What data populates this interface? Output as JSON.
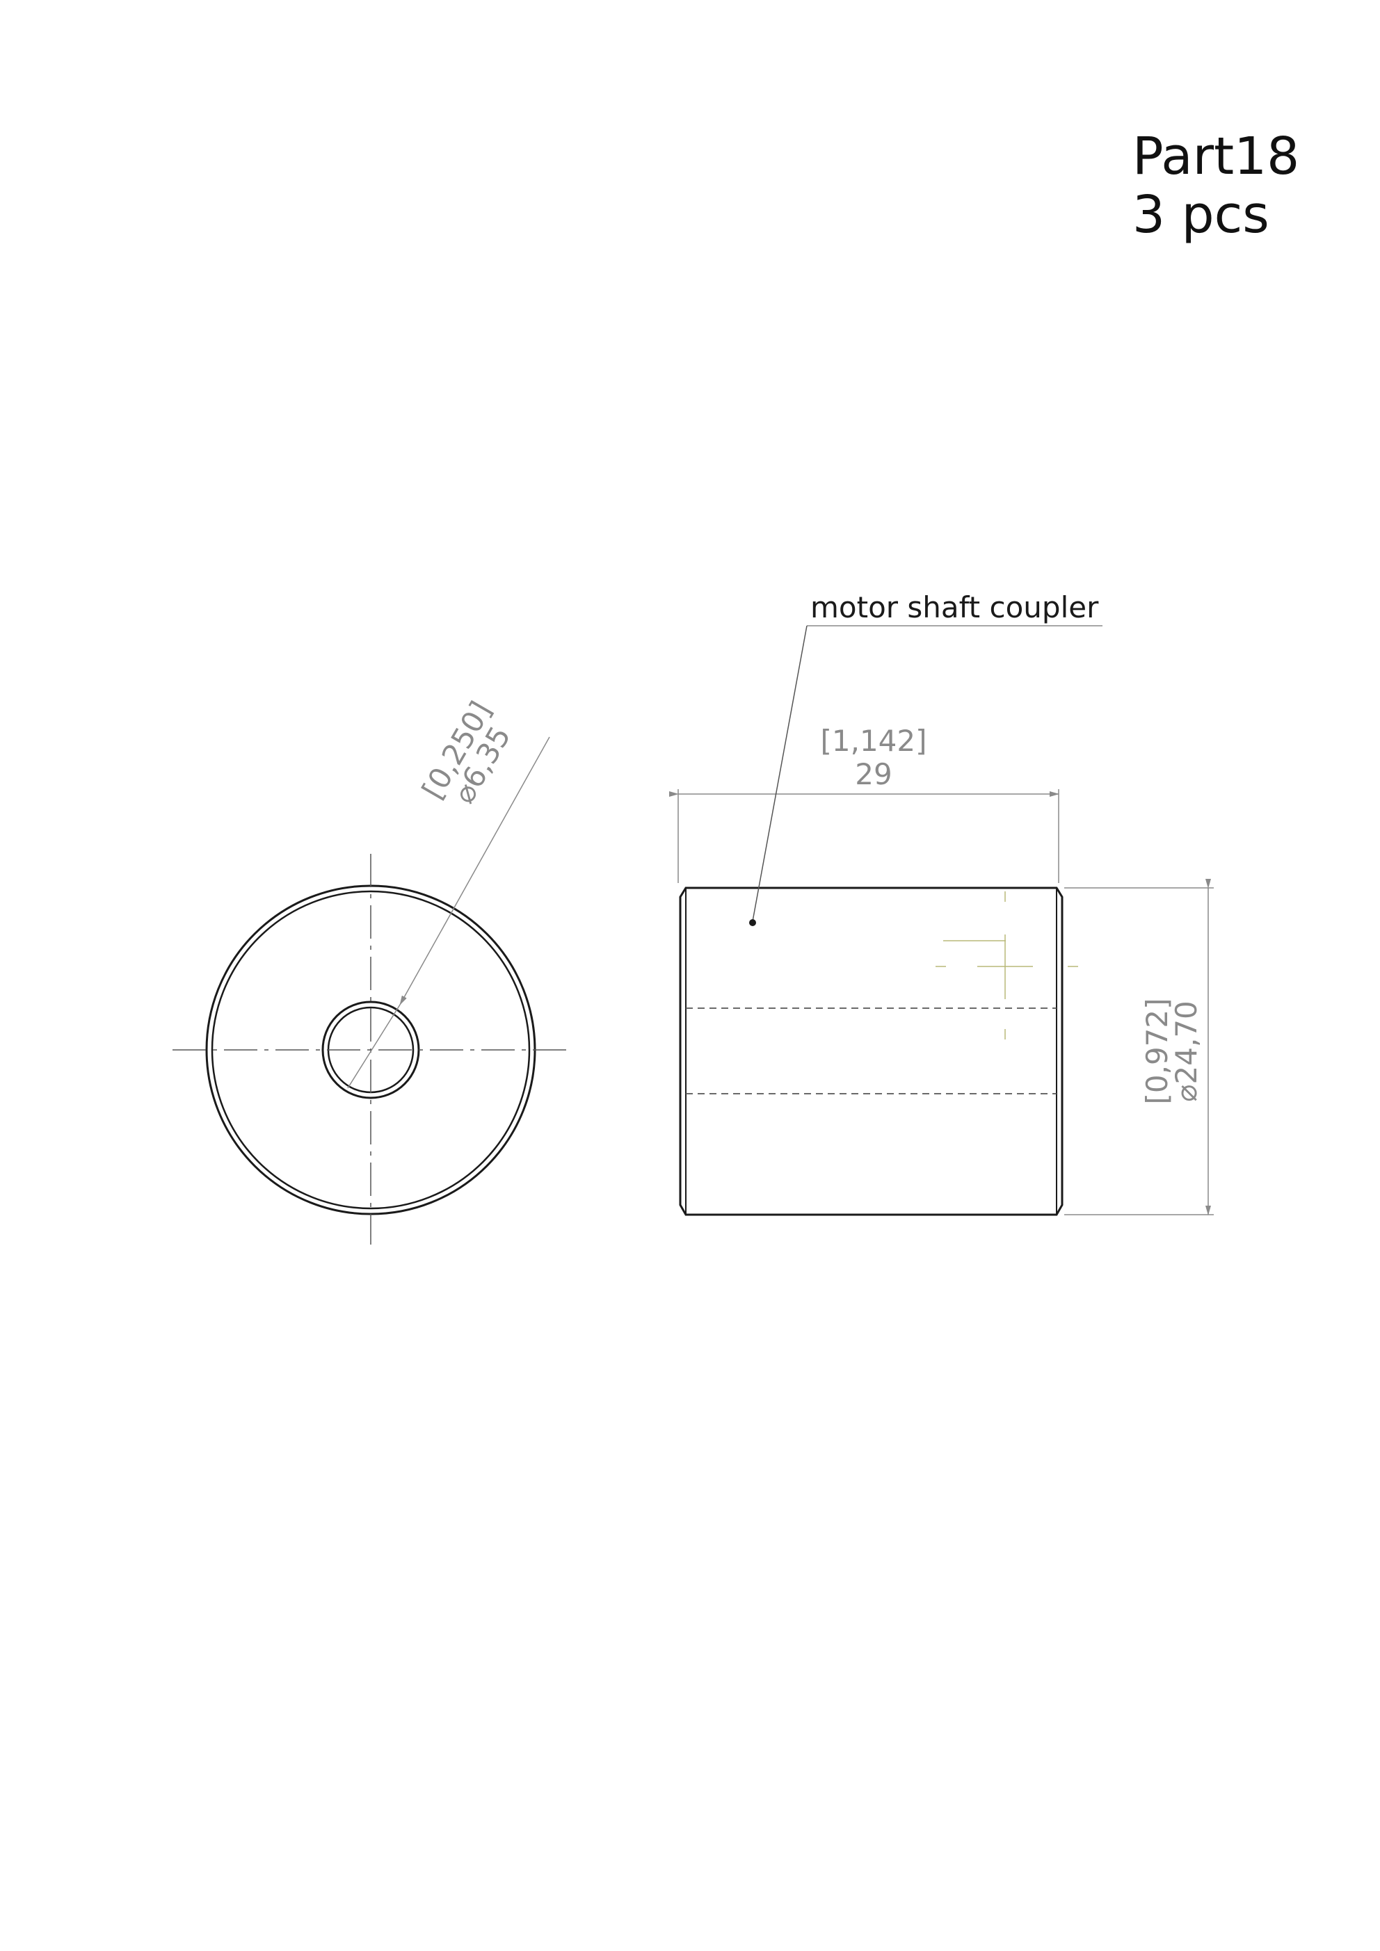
{
  "title_block": {
    "part_name": "Part18",
    "quantity": "3 pcs"
  },
  "annotations": {
    "note": "motor shaft coupler"
  },
  "dimensions": {
    "bore": {
      "imperial": "[0,250]",
      "metric": "⌀6,35"
    },
    "length": {
      "imperial": "[1,142]",
      "metric": "29"
    },
    "outer_diameter": {
      "imperial": "[0,972]",
      "metric": "⌀24,70"
    }
  },
  "colors": {
    "outline": "#1a1a1a",
    "dimension": "#8a8a8a",
    "centerline": "#555555",
    "marker": "#b8b878"
  }
}
